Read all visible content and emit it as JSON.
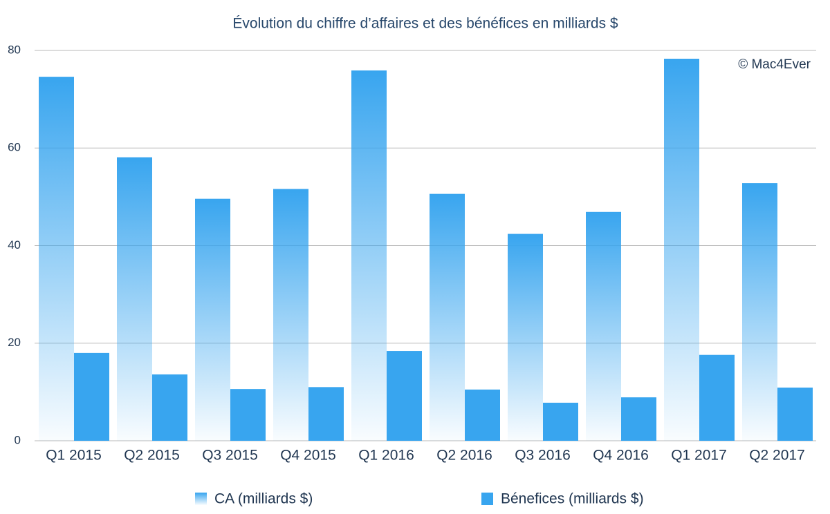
{
  "chart_data": {
    "type": "bar",
    "title": "Évolution du chiffre d’affaires et des bénéfices en milliards $",
    "annotation": "© Mac4Ever",
    "categories": [
      "Q1 2015",
      "Q2 2015",
      "Q3 2015",
      "Q4 2015",
      "Q1 2016",
      "Q2 2016",
      "Q3 2016",
      "Q4 2016",
      "Q1 2017",
      "Q2 2017"
    ],
    "series": [
      {
        "name": "CA (milliards $)",
        "color": "#38a5ef",
        "gradient": true,
        "values": [
          74.6,
          58.1,
          49.6,
          51.6,
          75.9,
          50.6,
          42.4,
          46.9,
          78.3,
          52.8
        ]
      },
      {
        "name": "Bénefices (milliards $)",
        "color": "#38a5ef",
        "gradient": false,
        "values": [
          18.0,
          13.6,
          10.6,
          11.0,
          18.4,
          10.5,
          7.8,
          8.9,
          17.6,
          10.9
        ]
      }
    ],
    "ylim": [
      0,
      80
    ],
    "yticks": [
      0,
      20,
      40,
      60,
      80
    ],
    "grid": true
  }
}
